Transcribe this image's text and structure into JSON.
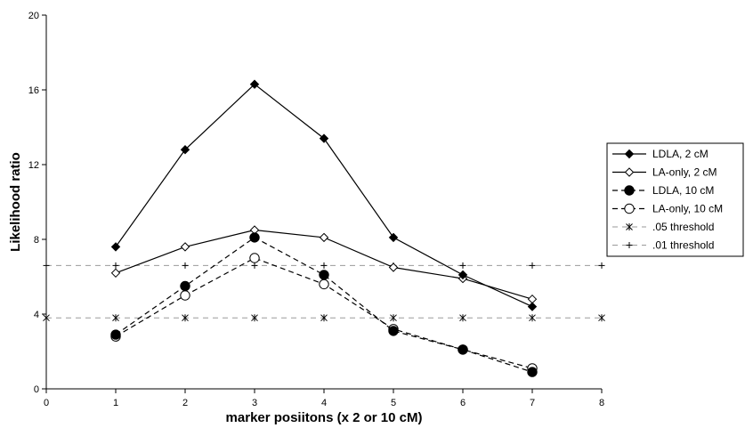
{
  "chart_data": {
    "type": "line",
    "title": "",
    "xlabel": "marker posiitons (x 2 or 10 cM)",
    "ylabel": "Likelihood ratio",
    "xlim": [
      0,
      8
    ],
    "ylim": [
      0,
      20
    ],
    "xticks": [
      "0",
      "1",
      "2",
      "3",
      "4",
      "5",
      "6",
      "7",
      "8"
    ],
    "yticks": [
      "0",
      "4",
      "8",
      "12",
      "16",
      "20"
    ],
    "grid": false,
    "legend_position": "right",
    "series": [
      {
        "name": "LDLA, 2 cM",
        "x": [
          1,
          2,
          3,
          4,
          5,
          6,
          7
        ],
        "values": [
          7.6,
          12.8,
          16.3,
          13.4,
          8.1,
          6.1,
          4.4
        ],
        "marker": "diamond-filled",
        "line": "solid"
      },
      {
        "name": "LA-only, 2 cM",
        "x": [
          1,
          2,
          3,
          4,
          5,
          6,
          7
        ],
        "values": [
          6.2,
          7.6,
          8.5,
          8.1,
          6.5,
          5.9,
          4.8
        ],
        "marker": "diamond-open",
        "line": "solid"
      },
      {
        "name": "LDLA, 10 cM",
        "x": [
          1,
          2,
          3,
          4,
          5,
          6,
          7
        ],
        "values": [
          2.9,
          5.5,
          8.1,
          6.1,
          3.1,
          2.1,
          0.9
        ],
        "marker": "circle-filled",
        "line": "dashed"
      },
      {
        "name": "LA-only, 10 cM",
        "x": [
          1,
          2,
          3,
          4,
          5,
          6,
          7
        ],
        "values": [
          2.8,
          5.0,
          7.0,
          5.6,
          3.2,
          2.1,
          1.1
        ],
        "marker": "circle-open",
        "line": "dashed"
      },
      {
        "name": ".05 threshold",
        "x": [
          0,
          1,
          2,
          3,
          4,
          5,
          6,
          7,
          8
        ],
        "values": [
          3.8,
          3.8,
          3.8,
          3.8,
          3.8,
          3.8,
          3.8,
          3.8,
          3.8
        ],
        "marker": "asterisk",
        "line": "dashed-gray"
      },
      {
        "name": ".01 threshold",
        "x": [
          0,
          1,
          2,
          3,
          4,
          5,
          6,
          7,
          8
        ],
        "values": [
          6.6,
          6.6,
          6.6,
          6.6,
          6.6,
          6.6,
          6.6,
          6.6,
          6.6
        ],
        "marker": "plus",
        "line": "dashed-gray"
      }
    ]
  }
}
